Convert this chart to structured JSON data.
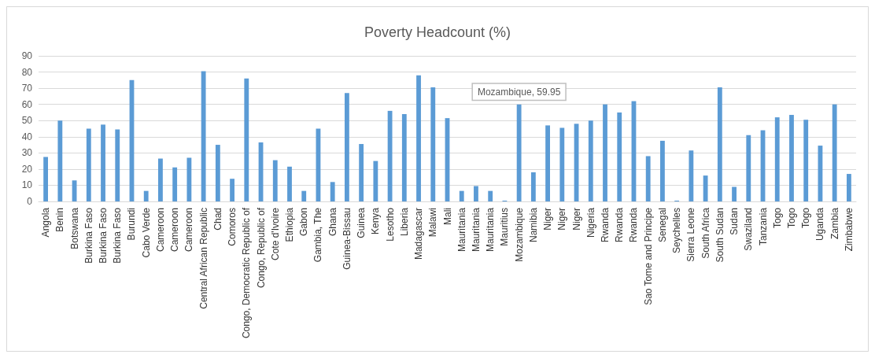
{
  "chart_data": {
    "type": "bar",
    "title": "Poverty Headcount (%)",
    "categories": [
      "Angola",
      "Benin",
      "Botswana",
      "Burkina Faso",
      "Burkina Faso",
      "Burkina Faso",
      "Burundi",
      "Cabo Verde",
      "Cameroon",
      "Cameroon",
      "Cameroon",
      "Central African Republic",
      "Chad",
      "Comoros",
      "Congo, Democratic Republic of",
      "Congo, Republic of",
      "Cote d'Ivoire",
      "Ethiopia",
      "Gabon",
      "Gambia, The",
      "Ghana",
      "Guinea-Bissau",
      "Guinea",
      "Kenya",
      "Lesotho",
      "Liberia",
      "Madagascar",
      "Malawi",
      "Mali",
      "Mauritania",
      "Mauritania",
      "Mauritania",
      "Mauritius",
      "Mozambique",
      "Namibia",
      "Niger",
      "Niger",
      "Niger",
      "Nigeria",
      "Rwanda",
      "Rwanda",
      "Rwanda",
      "Sao Tome and Principe",
      "Senegal",
      "Seychelles",
      "Sierra Leone",
      "South Africa",
      "South Sudan",
      "Sudan",
      "Swaziland",
      "Tanzania",
      "Togo",
      "Togo",
      "Togo",
      "Uganda",
      "Zambia",
      "Zimbabwe"
    ],
    "values": [
      27.5,
      50,
      13,
      45,
      47.5,
      44.5,
      75,
      6.5,
      26.5,
      21,
      27,
      80.5,
      35,
      14,
      76,
      36.5,
      25.5,
      21.5,
      6.5,
      45,
      12,
      67,
      35.5,
      25,
      56,
      54,
      78,
      70.5,
      51.5,
      6.5,
      9.5,
      6.5,
      0.5,
      59.95,
      18,
      47,
      45.5,
      48,
      50,
      60,
      55,
      62,
      28,
      37.5,
      0.5,
      31.5,
      16,
      70.5,
      9,
      41,
      44,
      52,
      53.5,
      50.5,
      34.5,
      60,
      17
    ],
    "color": "#5b9bd5",
    "ylim": [
      0,
      90
    ],
    "yticks": [
      0,
      10,
      20,
      30,
      40,
      50,
      60,
      70,
      80,
      90
    ],
    "grid": "y",
    "annotations": [
      {
        "text": "Mozambique, 59.95",
        "x": "Mozambique",
        "y": 59.95
      }
    ]
  }
}
